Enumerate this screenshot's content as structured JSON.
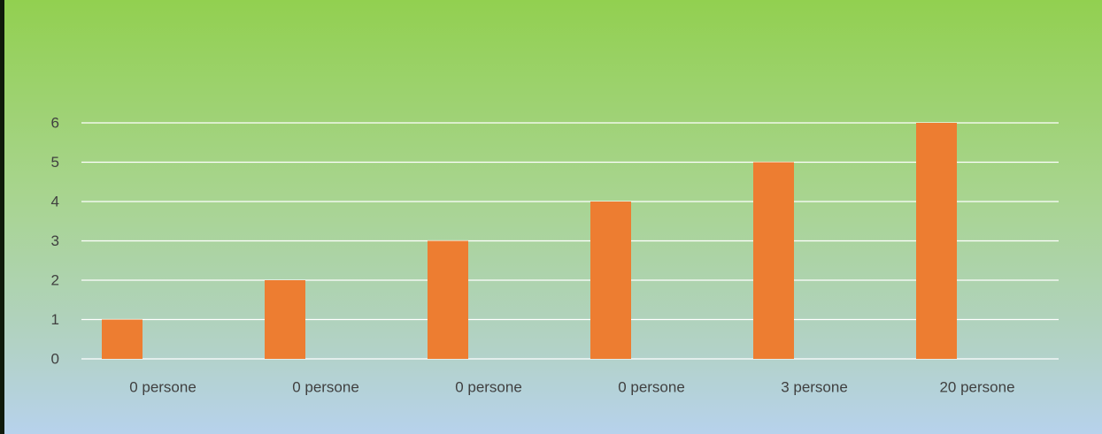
{
  "chart_data": {
    "type": "bar",
    "categories": [
      "0 persone",
      "0 persone",
      "0 persone",
      "0 persone",
      "3 persone",
      "20 persone"
    ],
    "values": [
      1,
      2,
      3,
      4,
      5,
      6
    ],
    "title": "",
    "xlabel": "",
    "ylabel": "",
    "ylim": [
      0,
      6
    ],
    "yticks": [
      "0",
      "1",
      "2",
      "3",
      "4",
      "5",
      "6"
    ],
    "grid": true,
    "legend": "none",
    "colors": {
      "bar": "#ed7d31",
      "grid": "#ffffff",
      "text": "#404040",
      "background_top": "#92d050",
      "background_bottom": "#b7d2ec"
    }
  }
}
